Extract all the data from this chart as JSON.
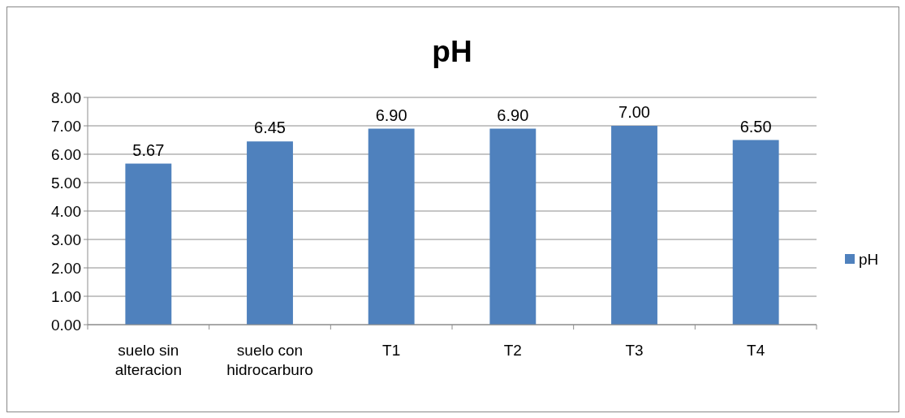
{
  "chart_data": {
    "type": "bar",
    "title": "pH",
    "categories": [
      "suelo sin alteracion",
      "suelo con hidrocarburo",
      "T1",
      "T2",
      "T3",
      "T4"
    ],
    "series": [
      {
        "name": "pH",
        "color": "#4f81bd",
        "values": [
          5.67,
          6.45,
          6.9,
          6.9,
          7.0,
          6.5
        ],
        "value_labels": [
          "5.67",
          "6.45",
          "6.90",
          "6.90",
          "7.00",
          "6.50"
        ]
      }
    ],
    "ylim": [
      0,
      8
    ],
    "yticks": [
      {
        "value": 0,
        "label": "0.00"
      },
      {
        "value": 1,
        "label": "1.00"
      },
      {
        "value": 2,
        "label": "2.00"
      },
      {
        "value": 3,
        "label": "3.00"
      },
      {
        "value": 4,
        "label": "4.00"
      },
      {
        "value": 5,
        "label": "5.00"
      },
      {
        "value": 6,
        "label": "6.00"
      },
      {
        "value": 7,
        "label": "7.00"
      },
      {
        "value": 8,
        "label": "8.00"
      }
    ],
    "grid": "y",
    "legend": "right"
  }
}
